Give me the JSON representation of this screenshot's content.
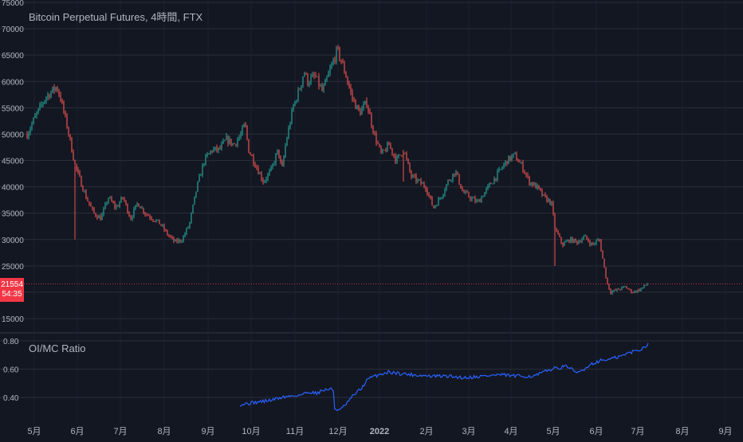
{
  "chart_data": [
    {
      "type": "candlestick",
      "title": "Bitcoin Perpetual Futures, 4時間, FTX",
      "y_ticks": [
        "75000",
        "70000",
        "65000",
        "60000",
        "55000",
        "50000",
        "45000",
        "40000",
        "35000",
        "30000",
        "25000",
        "20000",
        "15000"
      ],
      "ylim": [
        13500,
        75000
      ],
      "x_ticks": [
        "5月",
        "6月",
        "7月",
        "8月",
        "9月",
        "10月",
        "11月",
        "12月",
        "2022",
        "2月",
        "3月",
        "4月",
        "5月",
        "6月",
        "7月",
        "8月",
        "9月"
      ],
      "series": [
        {
          "anchors": [
            [
              0,
              50000
            ],
            [
              2,
              53000
            ],
            [
              5,
              57000
            ],
            [
              8,
              59000
            ],
            [
              9,
              57000
            ],
            [
              11,
              51000
            ],
            [
              13,
              44000
            ],
            [
              16,
              38000
            ],
            [
              18,
              35000
            ],
            [
              20,
              34000
            ],
            [
              22,
              38000
            ],
            [
              24,
              36000
            ],
            [
              26,
              38000
            ],
            [
              28,
              34000
            ],
            [
              30,
              37000
            ],
            [
              32,
              35000
            ],
            [
              34,
              34000
            ],
            [
              36,
              33000
            ],
            [
              38,
              31000
            ],
            [
              40,
              29500
            ],
            [
              42,
              30000
            ],
            [
              44,
              33000
            ],
            [
              46,
              40000
            ],
            [
              48,
              45000
            ],
            [
              50,
              47000
            ],
            [
              52,
              47000
            ],
            [
              54,
              49000
            ],
            [
              56,
              48000
            ],
            [
              58,
              50000
            ],
            [
              59,
              52000
            ],
            [
              60,
              47000
            ],
            [
              62,
              44000
            ],
            [
              64,
              41000
            ],
            [
              66,
              43000
            ],
            [
              68,
              47000
            ],
            [
              69,
              43000
            ],
            [
              70,
              48000
            ],
            [
              72,
              55000
            ],
            [
              74,
              59000
            ],
            [
              75,
              62000
            ],
            [
              76,
              60000
            ],
            [
              78,
              61000
            ],
            [
              80,
              58000
            ],
            [
              82,
              62000
            ],
            [
              84,
              66000
            ],
            [
              85,
              64000
            ],
            [
              86,
              62000
            ],
            [
              88,
              57000
            ],
            [
              90,
              54000
            ],
            [
              92,
              56000
            ],
            [
              94,
              50000
            ],
            [
              96,
              46000
            ],
            [
              98,
              48000
            ],
            [
              100,
              45000
            ],
            [
              102,
              47000
            ],
            [
              104,
              42000
            ],
            [
              106,
              41000
            ],
            [
              108,
              40000
            ],
            [
              110,
              36000
            ],
            [
              112,
              38000
            ],
            [
              114,
              41000
            ],
            [
              116,
              43000
            ],
            [
              118,
              39000
            ],
            [
              120,
              38000
            ],
            [
              122,
              37000
            ],
            [
              124,
              39000
            ],
            [
              126,
              41000
            ],
            [
              128,
              43000
            ],
            [
              130,
              45000
            ],
            [
              132,
              46000
            ],
            [
              134,
              44000
            ],
            [
              136,
              41000
            ],
            [
              138,
              40000
            ],
            [
              140,
              38000
            ],
            [
              142,
              37000
            ],
            [
              143,
              32000
            ],
            [
              145,
              29000
            ],
            [
              147,
              30000
            ],
            [
              149,
              29500
            ],
            [
              151,
              30500
            ],
            [
              153,
              29000
            ],
            [
              155,
              30000
            ],
            [
              156,
              26000
            ],
            [
              157,
              22000
            ],
            [
              158,
              20000
            ],
            [
              160,
              20500
            ],
            [
              162,
              21000
            ],
            [
              164,
              20000
            ],
            [
              166,
              20500
            ],
            [
              168,
              21554
            ]
          ]
        }
      ],
      "last_price": "21554",
      "countdown": "54:35",
      "colors": {
        "up": "#26a69a",
        "down": "#ef5350",
        "last_price": "#f23645",
        "background": "#131722"
      }
    },
    {
      "type": "line",
      "title": "OI/MC Ratio",
      "y_ticks": [
        "0.80",
        "0.60",
        "0.40"
      ],
      "ylim": [
        0.27,
        0.83
      ],
      "series": [
        {
          "anchors": [
            [
              0,
              0.35
            ],
            [
              3,
              0.36
            ],
            [
              6,
              0.37
            ],
            [
              9,
              0.38
            ],
            [
              12,
              0.4
            ],
            [
              15,
              0.41
            ],
            [
              18,
              0.42
            ],
            [
              20,
              0.44
            ],
            [
              22,
              0.43
            ],
            [
              24,
              0.45
            ],
            [
              26,
              0.46
            ],
            [
              27,
              0.45
            ],
            [
              27.2,
              0.32
            ],
            [
              29,
              0.31
            ],
            [
              31,
              0.36
            ],
            [
              33,
              0.42
            ],
            [
              35,
              0.46
            ],
            [
              37,
              0.53
            ],
            [
              40,
              0.56
            ],
            [
              43,
              0.58
            ],
            [
              46,
              0.57
            ],
            [
              50,
              0.56
            ],
            [
              55,
              0.55
            ],
            [
              60,
              0.55
            ],
            [
              65,
              0.54
            ],
            [
              70,
              0.55
            ],
            [
              75,
              0.56
            ],
            [
              80,
              0.55
            ],
            [
              85,
              0.55
            ],
            [
              88,
              0.58
            ],
            [
              90,
              0.6
            ],
            [
              92,
              0.61
            ],
            [
              95,
              0.62
            ],
            [
              97,
              0.57
            ],
            [
              99,
              0.59
            ],
            [
              101,
              0.63
            ],
            [
              104,
              0.66
            ],
            [
              107,
              0.67
            ],
            [
              110,
              0.69
            ],
            [
              113,
              0.72
            ],
            [
              116,
              0.74
            ],
            [
              118,
              0.78
            ]
          ]
        }
      ],
      "color": "#2962ff"
    }
  ]
}
